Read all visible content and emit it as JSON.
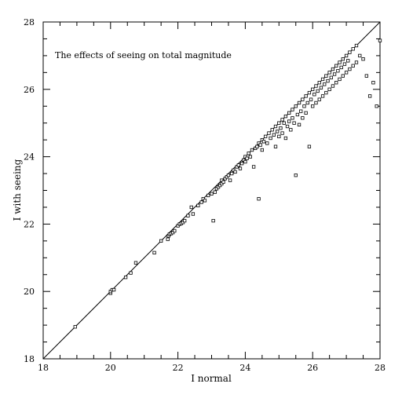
{
  "chart_data": {
    "type": "scatter",
    "title": "The effects of seeing on total magnitude",
    "xlabel": "I normal",
    "ylabel": "I with seeing",
    "xlim": [
      18,
      28
    ],
    "ylim": [
      18,
      28
    ],
    "xticks": [
      18,
      20,
      22,
      24,
      26,
      28
    ],
    "yticks": [
      18,
      20,
      22,
      24,
      26,
      28
    ],
    "minor_tick_step": 0.5,
    "grid": false,
    "legend": "none",
    "marker": "open-square",
    "reference_line": {
      "label": "",
      "from": [
        18,
        18
      ],
      "to": [
        28,
        28
      ]
    },
    "points": [
      [
        18.95,
        18.95
      ],
      [
        20.0,
        19.95
      ],
      [
        20.0,
        20.0
      ],
      [
        20.05,
        20.05
      ],
      [
        20.1,
        20.05
      ],
      [
        20.45,
        20.42
      ],
      [
        20.6,
        20.55
      ],
      [
        20.75,
        20.85
      ],
      [
        21.3,
        21.15
      ],
      [
        21.5,
        21.5
      ],
      [
        21.7,
        21.55
      ],
      [
        21.72,
        21.65
      ],
      [
        21.75,
        21.7
      ],
      [
        21.8,
        21.72
      ],
      [
        21.85,
        21.75
      ],
      [
        21.9,
        21.8
      ],
      [
        22.0,
        21.95
      ],
      [
        22.05,
        22.0
      ],
      [
        22.1,
        22.02
      ],
      [
        22.15,
        22.05
      ],
      [
        22.2,
        22.1
      ],
      [
        22.3,
        22.25
      ],
      [
        22.4,
        22.5
      ],
      [
        22.45,
        22.3
      ],
      [
        22.6,
        22.55
      ],
      [
        22.7,
        22.65
      ],
      [
        22.75,
        22.75
      ],
      [
        22.8,
        22.7
      ],
      [
        22.9,
        22.85
      ],
      [
        23.0,
        22.9
      ],
      [
        23.05,
        22.1
      ],
      [
        23.1,
        22.95
      ],
      [
        23.15,
        23.05
      ],
      [
        23.2,
        23.1
      ],
      [
        23.25,
        23.15
      ],
      [
        23.3,
        23.2
      ],
      [
        23.3,
        23.3
      ],
      [
        23.35,
        23.25
      ],
      [
        23.4,
        23.35
      ],
      [
        23.45,
        23.4
      ],
      [
        23.5,
        23.45
      ],
      [
        23.55,
        23.3
      ],
      [
        23.6,
        23.5
      ],
      [
        23.65,
        23.6
      ],
      [
        23.7,
        23.55
      ],
      [
        23.75,
        23.7
      ],
      [
        23.8,
        23.75
      ],
      [
        23.85,
        23.65
      ],
      [
        23.9,
        23.8
      ],
      [
        23.95,
        23.9
      ],
      [
        24.0,
        23.85
      ],
      [
        24.0,
        24.0
      ],
      [
        24.05,
        23.95
      ],
      [
        24.1,
        24.1
      ],
      [
        24.15,
        24.0
      ],
      [
        24.2,
        24.2
      ],
      [
        24.25,
        23.7
      ],
      [
        24.3,
        24.25
      ],
      [
        24.35,
        24.3
      ],
      [
        24.4,
        22.75
      ],
      [
        24.4,
        24.4
      ],
      [
        24.45,
        24.35
      ],
      [
        24.5,
        24.5
      ],
      [
        24.5,
        24.2
      ],
      [
        24.55,
        24.45
      ],
      [
        24.6,
        24.6
      ],
      [
        24.65,
        24.4
      ],
      [
        24.7,
        24.7
      ],
      [
        24.75,
        24.55
      ],
      [
        24.8,
        24.8
      ],
      [
        24.85,
        24.65
      ],
      [
        24.9,
        24.9
      ],
      [
        24.9,
        24.3
      ],
      [
        24.95,
        24.75
      ],
      [
        25.0,
        25.0
      ],
      [
        25.0,
        24.6
      ],
      [
        25.05,
        24.85
      ],
      [
        25.1,
        25.1
      ],
      [
        25.1,
        24.7
      ],
      [
        25.15,
        25.0
      ],
      [
        25.2,
        25.2
      ],
      [
        25.2,
        24.55
      ],
      [
        25.25,
        24.9
      ],
      [
        25.3,
        25.3
      ],
      [
        25.3,
        25.05
      ],
      [
        25.35,
        24.8
      ],
      [
        25.4,
        25.4
      ],
      [
        25.4,
        25.15
      ],
      [
        25.45,
        25.0
      ],
      [
        25.5,
        25.5
      ],
      [
        25.5,
        23.45
      ],
      [
        25.55,
        25.25
      ],
      [
        25.6,
        25.6
      ],
      [
        25.6,
        24.95
      ],
      [
        25.65,
        25.35
      ],
      [
        25.7,
        25.7
      ],
      [
        25.7,
        25.15
      ],
      [
        25.75,
        25.5
      ],
      [
        25.8,
        25.8
      ],
      [
        25.8,
        25.3
      ],
      [
        25.85,
        25.6
      ],
      [
        25.9,
        25.9
      ],
      [
        25.9,
        24.3
      ],
      [
        25.95,
        25.7
      ],
      [
        26.0,
        26.0
      ],
      [
        26.0,
        25.5
      ],
      [
        26.05,
        25.85
      ],
      [
        26.1,
        26.1
      ],
      [
        26.1,
        25.6
      ],
      [
        26.15,
        25.95
      ],
      [
        26.2,
        26.2
      ],
      [
        26.2,
        25.7
      ],
      [
        26.25,
        26.05
      ],
      [
        26.3,
        26.3
      ],
      [
        26.3,
        25.8
      ],
      [
        26.35,
        26.15
      ],
      [
        26.4,
        26.4
      ],
      [
        26.4,
        25.9
      ],
      [
        26.45,
        26.25
      ],
      [
        26.5,
        26.5
      ],
      [
        26.5,
        26.0
      ],
      [
        26.55,
        26.35
      ],
      [
        26.6,
        26.6
      ],
      [
        26.6,
        26.1
      ],
      [
        26.65,
        26.45
      ],
      [
        26.7,
        26.7
      ],
      [
        26.7,
        26.2
      ],
      [
        26.75,
        26.55
      ],
      [
        26.8,
        26.8
      ],
      [
        26.8,
        26.3
      ],
      [
        26.85,
        26.65
      ],
      [
        26.9,
        26.9
      ],
      [
        26.9,
        26.4
      ],
      [
        26.95,
        26.75
      ],
      [
        27.0,
        27.0
      ],
      [
        27.0,
        26.5
      ],
      [
        27.05,
        26.85
      ],
      [
        27.1,
        27.1
      ],
      [
        27.1,
        26.6
      ],
      [
        27.2,
        27.2
      ],
      [
        27.2,
        26.7
      ],
      [
        27.3,
        27.3
      ],
      [
        27.3,
        26.8
      ],
      [
        27.4,
        27.0
      ],
      [
        27.5,
        26.9
      ],
      [
        27.6,
        26.4
      ],
      [
        27.7,
        25.8
      ],
      [
        27.8,
        26.2
      ],
      [
        27.9,
        25.5
      ],
      [
        28.0,
        27.45
      ]
    ]
  }
}
